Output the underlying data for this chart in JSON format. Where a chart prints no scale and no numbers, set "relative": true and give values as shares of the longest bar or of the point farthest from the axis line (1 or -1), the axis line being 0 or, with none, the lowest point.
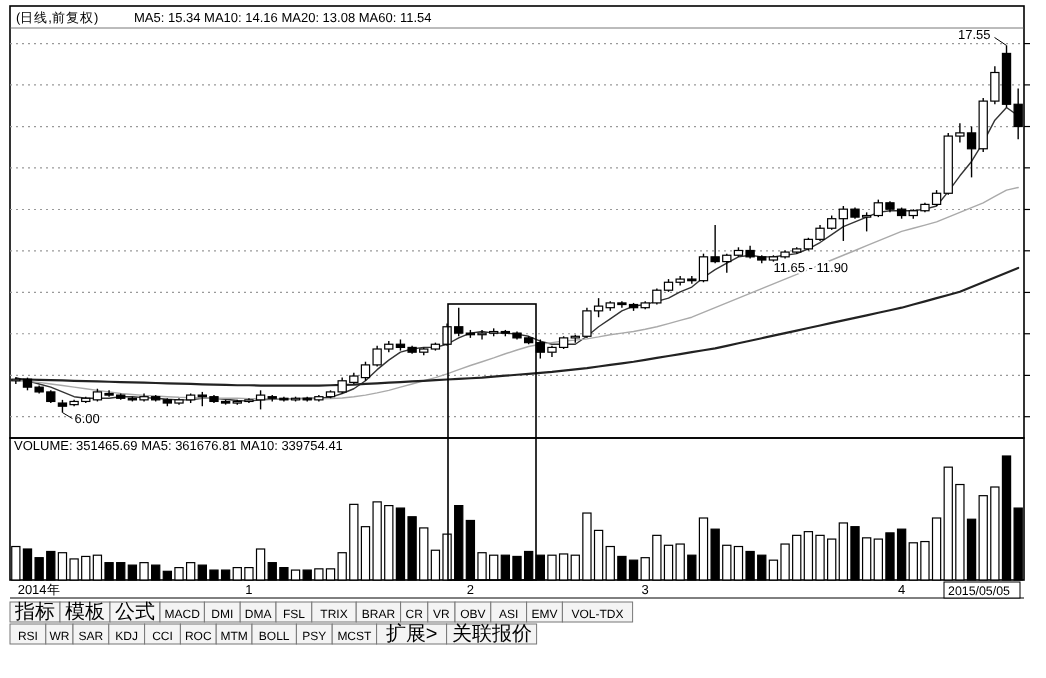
{
  "chart_data": [
    {
      "type": "candlestick",
      "title": "(日线,前复权)",
      "categories": [
        null,
        null,
        null,
        null,
        null,
        null,
        null,
        null,
        null,
        null,
        null,
        null,
        null,
        null,
        null,
        null,
        null,
        null,
        null,
        null,
        null,
        null,
        null,
        null,
        null,
        null,
        null,
        null,
        null,
        null,
        null,
        null,
        null,
        null,
        null,
        null,
        null,
        null,
        null,
        null,
        null,
        null,
        null,
        null,
        null,
        null,
        null,
        null,
        null,
        null,
        null,
        null,
        null,
        null,
        null,
        null,
        null,
        null,
        null,
        null,
        null,
        null,
        null,
        null,
        null,
        null,
        null,
        null,
        null,
        null,
        null,
        null,
        null,
        null,
        null,
        null,
        null,
        null,
        null,
        null,
        null,
        null,
        null,
        null,
        null,
        null,
        null
      ],
      "ohlc": [
        [
          7.0,
          7.1,
          6.9,
          7.05
        ],
        [
          7.05,
          7.1,
          6.7,
          6.8
        ],
        [
          6.8,
          6.85,
          6.6,
          6.65
        ],
        [
          6.65,
          6.7,
          6.3,
          6.35
        ],
        [
          6.3,
          6.4,
          6.0,
          6.2
        ],
        [
          6.25,
          6.4,
          6.2,
          6.35
        ],
        [
          6.35,
          6.5,
          6.3,
          6.45
        ],
        [
          6.4,
          6.75,
          6.35,
          6.65
        ],
        [
          6.6,
          6.7,
          6.5,
          6.55
        ],
        [
          6.55,
          6.6,
          6.4,
          6.45
        ],
        [
          6.45,
          6.5,
          6.35,
          6.4
        ],
        [
          6.4,
          6.6,
          6.35,
          6.5
        ],
        [
          6.5,
          6.55,
          6.35,
          6.4
        ],
        [
          6.4,
          6.45,
          6.2,
          6.3
        ],
        [
          6.3,
          6.45,
          6.25,
          6.4
        ],
        [
          6.4,
          6.6,
          6.3,
          6.55
        ],
        [
          6.55,
          6.65,
          6.2,
          6.5
        ],
        [
          6.5,
          6.55,
          6.3,
          6.35
        ],
        [
          6.35,
          6.4,
          6.25,
          6.3
        ],
        [
          6.3,
          6.4,
          6.25,
          6.35
        ],
        [
          6.35,
          6.45,
          6.3,
          6.4
        ],
        [
          6.4,
          6.7,
          6.1,
          6.55
        ],
        [
          6.5,
          6.55,
          6.35,
          6.45
        ],
        [
          6.45,
          6.5,
          6.35,
          6.4
        ],
        [
          6.4,
          6.5,
          6.35,
          6.45
        ],
        [
          6.45,
          6.5,
          6.35,
          6.4
        ],
        [
          6.4,
          6.55,
          6.35,
          6.5
        ],
        [
          6.5,
          6.7,
          6.45,
          6.65
        ],
        [
          6.65,
          7.1,
          6.6,
          7.0
        ],
        [
          6.95,
          7.25,
          6.9,
          7.15
        ],
        [
          7.1,
          7.6,
          7.0,
          7.5
        ],
        [
          7.5,
          8.1,
          7.45,
          8.0
        ],
        [
          8.0,
          8.25,
          7.9,
          8.15
        ],
        [
          8.15,
          8.3,
          7.95,
          8.05
        ],
        [
          8.05,
          8.1,
          7.85,
          7.9
        ],
        [
          7.9,
          8.05,
          7.8,
          8.0
        ],
        [
          8.0,
          8.2,
          7.95,
          8.15
        ],
        [
          8.15,
          8.8,
          8.1,
          8.7
        ],
        [
          8.7,
          9.3,
          8.4,
          8.5
        ],
        [
          8.5,
          8.6,
          8.35,
          8.45
        ],
        [
          8.45,
          8.6,
          8.3,
          8.5
        ],
        [
          8.5,
          8.65,
          8.4,
          8.55
        ],
        [
          8.55,
          8.6,
          8.4,
          8.5
        ],
        [
          8.5,
          8.55,
          8.3,
          8.35
        ],
        [
          8.35,
          8.4,
          8.15,
          8.2
        ],
        [
          8.2,
          8.3,
          7.7,
          7.9
        ],
        [
          7.9,
          8.1,
          7.75,
          8.05
        ],
        [
          8.05,
          8.4,
          8.0,
          8.35
        ],
        [
          8.35,
          8.45,
          8.2,
          8.4
        ],
        [
          8.4,
          9.3,
          8.35,
          9.2
        ],
        [
          9.2,
          9.6,
          9.0,
          9.35
        ],
        [
          9.3,
          9.5,
          9.2,
          9.45
        ],
        [
          9.45,
          9.5,
          9.3,
          9.4
        ],
        [
          9.4,
          9.45,
          9.2,
          9.3
        ],
        [
          9.3,
          9.5,
          9.25,
          9.45
        ],
        [
          9.45,
          9.9,
          9.4,
          9.85
        ],
        [
          9.85,
          10.2,
          9.8,
          10.1
        ],
        [
          10.1,
          10.3,
          10.0,
          10.2
        ],
        [
          10.2,
          10.3,
          10.05,
          10.15
        ],
        [
          10.15,
          11.0,
          10.1,
          10.9
        ],
        [
          10.9,
          11.9,
          10.7,
          10.75
        ],
        [
          10.75,
          11.0,
          10.4,
          10.95
        ],
        [
          10.95,
          11.2,
          10.9,
          11.1
        ],
        [
          11.1,
          11.25,
          10.85,
          10.9
        ],
        [
          10.9,
          10.95,
          10.7,
          10.8
        ],
        [
          10.8,
          10.95,
          10.75,
          10.9
        ],
        [
          10.9,
          11.1,
          10.85,
          11.05
        ],
        [
          11.05,
          11.2,
          11.0,
          11.15
        ],
        [
          11.15,
          11.5,
          11.1,
          11.45
        ],
        [
          11.45,
          11.9,
          11.4,
          11.8
        ],
        [
          11.8,
          12.2,
          11.75,
          12.1
        ],
        [
          12.1,
          12.5,
          11.4,
          12.4
        ],
        [
          12.4,
          12.45,
          12.1,
          12.15
        ],
        [
          12.15,
          12.3,
          11.7,
          12.2
        ],
        [
          12.2,
          12.7,
          12.15,
          12.6
        ],
        [
          12.6,
          12.65,
          12.3,
          12.4
        ],
        [
          12.4,
          12.45,
          12.1,
          12.2
        ],
        [
          12.2,
          12.4,
          12.1,
          12.35
        ],
        [
          12.35,
          12.6,
          12.3,
          12.55
        ],
        [
          12.55,
          13.0,
          12.5,
          12.9
        ],
        [
          12.9,
          14.8,
          12.85,
          14.7
        ],
        [
          14.7,
          15.1,
          14.5,
          14.8
        ],
        [
          14.8,
          15.0,
          13.4,
          14.3
        ],
        [
          14.3,
          15.9,
          14.2,
          15.8
        ],
        [
          15.8,
          16.9,
          15.7,
          16.7
        ],
        [
          17.3,
          17.55,
          15.6,
          15.7
        ],
        [
          15.7,
          16.2,
          14.6,
          15.0
        ]
      ],
      "series": [
        {
          "type": "line",
          "color": "#333333",
          "values": [
            7.1,
            7.0,
            6.9,
            6.8,
            6.65,
            6.5,
            6.45,
            6.45,
            6.45,
            6.5,
            6.5,
            6.47,
            6.45,
            6.42,
            6.4,
            6.4,
            6.45,
            6.45,
            6.42,
            6.38,
            6.36,
            6.4,
            6.42,
            6.43,
            6.44,
            6.45,
            6.45,
            6.48,
            6.6,
            6.75,
            7.0,
            7.35,
            7.65,
            7.9,
            8.0,
            8.05,
            8.05,
            8.15,
            8.35,
            8.5,
            8.55,
            8.5,
            8.5,
            8.47,
            8.4,
            8.25,
            8.15,
            8.15,
            8.15,
            8.4,
            8.7,
            8.95,
            9.2,
            9.35,
            9.4,
            9.5,
            9.6,
            9.8,
            9.95,
            10.25,
            10.5,
            10.7,
            10.9,
            10.95,
            10.9,
            10.9,
            10.95,
            11.0,
            11.15,
            11.35,
            11.6,
            11.85,
            12.0,
            12.15,
            12.3,
            12.35,
            12.35,
            12.35,
            12.4,
            12.5,
            12.95,
            13.45,
            13.9,
            14.5,
            15.2,
            15.6,
            15.34
          ]
        },
        {
          "type": "line",
          "color": "#aaaaaa",
          "values": [
            7.0,
            6.98,
            6.95,
            6.9,
            6.85,
            6.8,
            6.75,
            6.7,
            6.65,
            6.6,
            6.57,
            6.54,
            6.52,
            6.5,
            6.48,
            6.47,
            6.46,
            6.45,
            6.45,
            6.45,
            6.44,
            6.43,
            6.43,
            6.43,
            6.43,
            6.43,
            6.43,
            6.44,
            6.46,
            6.5,
            6.55,
            6.62,
            6.7,
            6.8,
            6.9,
            7.0,
            7.1,
            7.22,
            7.35,
            7.48,
            7.6,
            7.72,
            7.85,
            7.97,
            8.08,
            8.15,
            8.2,
            8.25,
            8.28,
            8.32,
            8.38,
            8.45,
            8.5,
            8.55,
            8.62,
            8.7,
            8.8,
            8.9,
            9.0,
            9.15,
            9.3,
            9.45,
            9.6,
            9.75,
            9.9,
            10.05,
            10.2,
            10.35,
            10.5,
            10.65,
            10.8,
            10.95,
            11.1,
            11.25,
            11.4,
            11.55,
            11.7,
            11.8,
            11.9,
            12.0,
            12.15,
            12.3,
            12.45,
            12.6,
            12.8,
            13.0,
            13.08
          ]
        },
        {
          "type": "line",
          "color": "#222222",
          "values": [
            7.05,
            7.04,
            7.03,
            7.02,
            7.01,
            7.0,
            6.99,
            6.98,
            6.97,
            6.96,
            6.95,
            6.94,
            6.93,
            6.92,
            6.91,
            6.9,
            6.89,
            6.88,
            6.87,
            6.86,
            6.86,
            6.85,
            6.85,
            6.85,
            6.85,
            6.85,
            6.85,
            6.86,
            6.87,
            6.88,
            6.9,
            6.92,
            6.94,
            6.96,
            6.98,
            7.0,
            7.02,
            7.04,
            7.06,
            7.08,
            7.1,
            7.13,
            7.16,
            7.19,
            7.22,
            7.25,
            7.28,
            7.32,
            7.36,
            7.4,
            7.45,
            7.5,
            7.55,
            7.6,
            7.66,
            7.72,
            7.78,
            7.84,
            7.9,
            7.96,
            8.02,
            8.1,
            8.18,
            8.26,
            8.34,
            8.42,
            8.5,
            8.58,
            8.66,
            8.74,
            8.82,
            8.9,
            8.98,
            9.06,
            9.14,
            9.22,
            9.3,
            9.4,
            9.5,
            9.6,
            9.7,
            9.8,
            9.95,
            10.1,
            10.25,
            10.4,
            10.55
          ]
        }
      ],
      "ylim": [
        5.2,
        18.1
      ],
      "yticks": [
        {
          "value": 5.87,
          "label": null
        },
        {
          "value": 7.17,
          "label": null
        },
        {
          "value": 8.48,
          "label": null
        },
        {
          "value": 9.78,
          "label": null
        },
        {
          "value": 11.09,
          "label": null
        },
        {
          "value": 12.39,
          "label": null
        },
        {
          "value": 13.7,
          "label": null
        },
        {
          "value": 15.0,
          "label": null
        },
        {
          "value": 16.31,
          "label": null
        },
        {
          "value": 17.61,
          "label": null
        }
      ],
      "grid": "y",
      "tick_labels": false,
      "annotations": [
        "MA5: 15.34  MA10: 14.16  MA20: 13.08  MA60: 11.54",
        "17.55",
        "6.00",
        "11.65 - 11.90"
      ]
    },
    {
      "type": "bar",
      "relative": true,
      "tick_labels": "x",
      "categories": [
        null,
        null,
        "2014年",
        null,
        null,
        null,
        null,
        null,
        null,
        null,
        null,
        null,
        null,
        null,
        null,
        null,
        null,
        null,
        null,
        null,
        "1",
        null,
        null,
        null,
        null,
        null,
        null,
        null,
        null,
        null,
        null,
        null,
        null,
        null,
        null,
        null,
        null,
        null,
        null,
        "2",
        null,
        null,
        null,
        null,
        null,
        null,
        null,
        null,
        null,
        null,
        null,
        null,
        null,
        null,
        "3",
        null,
        null,
        null,
        null,
        null,
        null,
        null,
        null,
        null,
        null,
        null,
        null,
        null,
        null,
        null,
        null,
        null,
        null,
        null,
        null,
        null,
        "4",
        null,
        null,
        null,
        null,
        null,
        null,
        null,
        null,
        null,
        null
      ],
      "values": [
        0.27,
        0.25,
        0.18,
        0.23,
        0.22,
        0.17,
        0.19,
        0.2,
        0.14,
        0.14,
        0.12,
        0.14,
        0.12,
        0.07,
        0.1,
        0.14,
        0.12,
        0.08,
        0.08,
        0.1,
        0.1,
        0.25,
        0.14,
        0.1,
        0.08,
        0.08,
        0.09,
        0.09,
        0.22,
        0.61,
        0.43,
        0.63,
        0.6,
        0.58,
        0.51,
        0.42,
        0.24,
        0.37,
        0.6,
        0.48,
        0.22,
        0.2,
        0.2,
        0.19,
        0.23,
        0.2,
        0.2,
        0.21,
        0.2,
        0.54,
        0.4,
        0.27,
        0.19,
        0.16,
        0.18,
        0.36,
        0.28,
        0.29,
        0.2,
        0.5,
        0.41,
        0.28,
        0.27,
        0.23,
        0.2,
        0.16,
        0.29,
        0.36,
        0.39,
        0.36,
        0.33,
        0.46,
        0.43,
        0.34,
        0.33,
        0.38,
        0.41,
        0.3,
        0.31,
        0.5,
        0.91,
        0.77,
        0.49,
        0.68,
        0.75,
        1,
        0.58
      ],
      "colors": [
        "#ffffff",
        "#000000",
        "#000000",
        "#000000",
        "#ffffff",
        "#ffffff",
        "#ffffff",
        "#ffffff",
        "#000000",
        "#000000",
        "#000000",
        "#ffffff",
        "#000000",
        "#000000",
        "#ffffff",
        "#ffffff",
        "#000000",
        "#000000",
        "#000000",
        "#ffffff",
        "#ffffff",
        "#ffffff",
        "#000000",
        "#000000",
        "#ffffff",
        "#000000",
        "#ffffff",
        "#ffffff",
        "#ffffff",
        "#ffffff",
        "#ffffff",
        "#ffffff",
        "#ffffff",
        "#000000",
        "#000000",
        "#ffffff",
        "#ffffff",
        "#ffffff",
        "#000000",
        "#000000",
        "#ffffff",
        "#ffffff",
        "#000000",
        "#000000",
        "#000000",
        "#000000",
        "#ffffff",
        "#ffffff",
        "#ffffff",
        "#ffffff",
        "#ffffff",
        "#ffffff",
        "#000000",
        "#000000",
        "#ffffff",
        "#ffffff",
        "#ffffff",
        "#ffffff",
        "#000000",
        "#ffffff",
        "#000000",
        "#ffffff",
        "#ffffff",
        "#000000",
        "#000000",
        "#ffffff",
        "#ffffff",
        "#ffffff",
        "#ffffff",
        "#ffffff",
        "#ffffff",
        "#ffffff",
        "#000000",
        "#ffffff",
        "#ffffff",
        "#000000",
        "#000000",
        "#ffffff",
        "#ffffff",
        "#ffffff",
        "#ffffff",
        "#ffffff",
        "#000000",
        "#ffffff",
        "#ffffff",
        "#000000",
        "#000000"
      ],
      "annotations": [
        "VOLUME: 351465.69  MA5: 361676.81  MA10: 339754.41",
        "2015/05/05",
        "指标",
        "模板",
        "公式",
        "MACD",
        "DMI",
        "DMA",
        "FSL",
        "TRIX",
        "BRAR",
        "CR",
        "VR",
        "OBV",
        "ASI",
        "EMV",
        "VOL-TDX",
        "RSI",
        "WR",
        "SAR",
        "KDJ",
        "CCI",
        "ROC",
        "MTM",
        "BOLL",
        "PSY",
        "MCST",
        "扩展>",
        "关联报价"
      ]
    }
  ]
}
